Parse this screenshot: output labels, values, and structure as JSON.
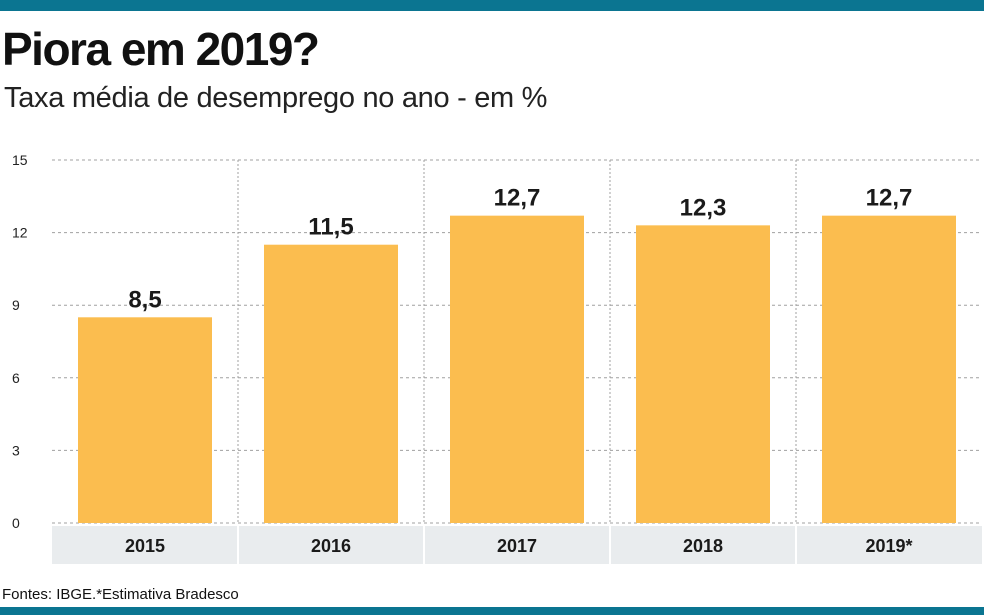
{
  "header": {
    "title": "Piora em 2019?",
    "subtitle": "Taxa média de desemprego no ano - em %"
  },
  "footer": {
    "source": "Fontes: IBGE.*Estimativa Bradesco"
  },
  "colors": {
    "accent": "#0b7591",
    "bar": "#fbbd4f",
    "category_band": "#e9ecee",
    "grid": "#a0a0a0"
  },
  "chart_data": {
    "type": "bar",
    "categories": [
      "2015",
      "2016",
      "2017",
      "2018",
      "2019*"
    ],
    "values": [
      8.5,
      11.5,
      12.7,
      12.3,
      12.7
    ],
    "value_labels": [
      "8,5",
      "11,5",
      "12,7",
      "12,3",
      "12,7"
    ],
    "yticks": [
      0,
      3,
      6,
      9,
      12,
      15
    ],
    "ylim": [
      0,
      15
    ],
    "title": "Piora em 2019?",
    "subtitle": "Taxa média de desemprego no ano - em %",
    "xlabel": "",
    "ylabel": "",
    "grid": true,
    "legend": "none"
  }
}
